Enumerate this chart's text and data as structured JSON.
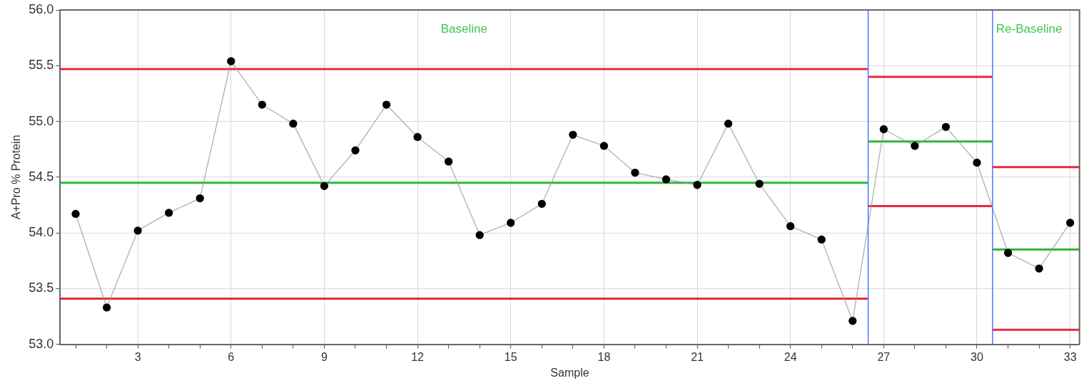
{
  "chart_data": {
    "type": "line",
    "xlabel": "Sample",
    "ylabel": "A+Pro % Protein",
    "x": [
      1,
      2,
      3,
      4,
      5,
      6,
      7,
      8,
      9,
      10,
      11,
      12,
      13,
      14,
      15,
      16,
      17,
      18,
      19,
      20,
      21,
      22,
      23,
      24,
      25,
      26,
      27,
      28,
      29,
      30,
      31,
      32,
      33
    ],
    "series": [
      {
        "color": "#000000",
        "values": [
          54.17,
          53.33,
          54.02,
          54.18,
          54.31,
          55.54,
          55.15,
          54.98,
          54.42,
          54.74,
          55.15,
          54.86,
          54.64,
          53.98,
          54.09,
          54.26,
          54.88,
          54.78,
          54.54,
          54.48,
          54.43,
          54.98,
          54.44,
          54.06,
          53.94,
          53.21,
          54.93,
          54.78,
          54.95,
          54.63,
          53.82,
          53.68,
          54.09
        ]
      },
      {
        "type": "line",
        "marker": "none",
        "color": "#e8293b",
        "x": [
          0.5,
          26.5
        ],
        "values": [
          55.47,
          55.47
        ]
      },
      {
        "type": "line",
        "marker": "none",
        "color": "#2db83d",
        "x": [
          0.5,
          26.5
        ],
        "values": [
          54.45,
          54.45
        ]
      },
      {
        "type": "line",
        "marker": "none",
        "color": "#e8293b",
        "x": [
          0.5,
          26.5
        ],
        "values": [
          53.41,
          53.41
        ]
      },
      {
        "type": "line",
        "marker": "none",
        "color": "#e8293b",
        "x": [
          26.5,
          30.5
        ],
        "values": [
          55.4,
          55.4
        ]
      },
      {
        "type": "line",
        "marker": "none",
        "color": "#2db83d",
        "x": [
          26.5,
          30.5
        ],
        "values": [
          54.82,
          54.82
        ]
      },
      {
        "type": "line",
        "marker": "none",
        "color": "#e8293b",
        "x": [
          26.5,
          30.5
        ],
        "values": [
          54.24,
          54.24
        ]
      },
      {
        "type": "line",
        "marker": "none",
        "color": "#e8293b",
        "x": [
          30.5,
          33.3
        ],
        "values": [
          54.59,
          54.59
        ]
      },
      {
        "type": "line",
        "marker": "none",
        "color": "#2db83d",
        "x": [
          30.5,
          33.3
        ],
        "values": [
          53.85,
          53.85
        ]
      },
      {
        "type": "line",
        "marker": "none",
        "color": "#e8293b",
        "x": [
          30.5,
          33.3
        ],
        "values": [
          53.13,
          53.13
        ]
      }
    ],
    "ref_lines": [
      {
        "axis": "x",
        "value": 26.5,
        "color": "#4a7cf5"
      },
      {
        "axis": "x",
        "value": 30.5,
        "color": "#4a7cf5",
        "label": "Re-Baseline"
      }
    ],
    "annotations": [
      "Baseline"
    ],
    "xlim": [
      0.5,
      33.3
    ],
    "xticks": [
      {
        "value": 1,
        "label": null
      },
      {
        "value": 2,
        "label": null
      },
      3,
      {
        "value": 4,
        "label": null
      },
      {
        "value": 5,
        "label": null
      },
      6,
      {
        "value": 7,
        "label": null
      },
      {
        "value": 8,
        "label": null
      },
      9,
      {
        "value": 10,
        "label": null
      },
      {
        "value": 11,
        "label": null
      },
      12,
      {
        "value": 13,
        "label": null
      },
      {
        "value": 14,
        "label": null
      },
      15,
      {
        "value": 16,
        "label": null
      },
      {
        "value": 17,
        "label": null
      },
      18,
      {
        "value": 19,
        "label": null
      },
      {
        "value": 20,
        "label": null
      },
      21,
      {
        "value": 22,
        "label": null
      },
      {
        "value": 23,
        "label": null
      },
      24,
      {
        "value": 25,
        "label": null
      },
      {
        "value": 26,
        "label": null
      },
      27,
      {
        "value": 28,
        "label": null
      },
      {
        "value": 29,
        "label": null
      },
      30,
      {
        "value": 31,
        "label": null
      },
      {
        "value": 32,
        "label": null
      },
      33
    ],
    "ylim": [
      53,
      56
    ],
    "yticks": [
      {
        "value": 53,
        "label": "53.0"
      },
      {
        "value": 53.5,
        "label": "53.5"
      },
      {
        "value": 54,
        "label": "54.0"
      },
      {
        "value": 54.5,
        "label": "54.5"
      },
      {
        "value": 55,
        "label": "55.0"
      },
      {
        "value": 55.5,
        "label": "55.5"
      },
      {
        "value": 56,
        "label": "56.0"
      }
    ],
    "grid": true,
    "legend": false,
    "marker": "circle"
  }
}
